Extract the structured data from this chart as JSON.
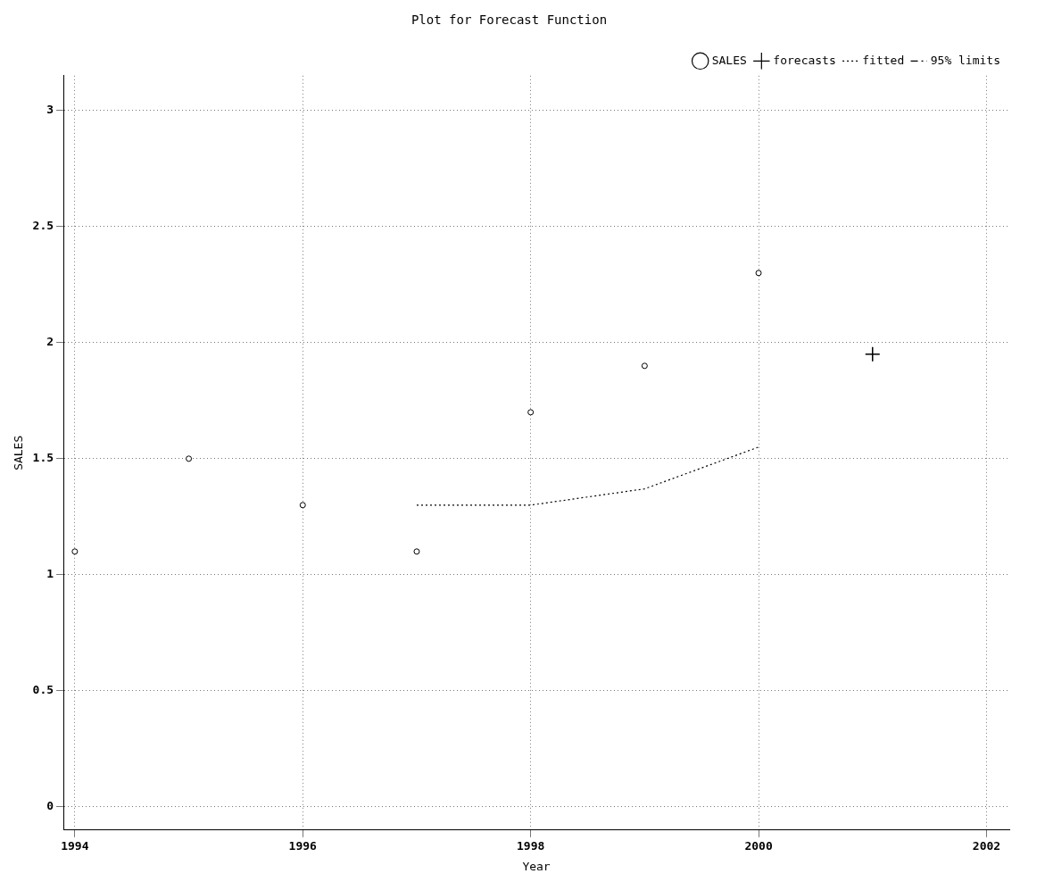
{
  "chart_data": {
    "type": "scatter",
    "title": "Plot for Forecast Function",
    "xlabel": "Year",
    "ylabel": "SALES",
    "xlim": [
      1993.9,
      2002.2
    ],
    "xticks": [
      1994,
      1996,
      1998,
      2000,
      2002
    ],
    "ylim": [
      -0.1,
      3.15
    ],
    "yticks": [
      0,
      0.5,
      1,
      1.5,
      2,
      2.5,
      3
    ],
    "grid": true,
    "legend": "top right",
    "series": [
      {
        "name": "SALES",
        "marker": "circle",
        "color": "#000000",
        "x": [
          1994,
          1995,
          1996,
          1997,
          1998,
          1999,
          2000
        ],
        "values": [
          1.1,
          1.5,
          1.3,
          1.1,
          1.7,
          1.9,
          2.3
        ]
      },
      {
        "name": "forecasts",
        "type": "scatter",
        "marker": "cross",
        "color": "#000000",
        "x": [
          2001
        ],
        "values": [
          1.95
        ]
      },
      {
        "name": "fitted",
        "type": "line",
        "marker": "none",
        "line_style": "dotted",
        "color": "#000000",
        "x": [
          1997,
          1998,
          1999,
          2000
        ],
        "values": [
          1.3,
          1.3,
          1.37,
          1.55
        ]
      },
      {
        "name": "95% limits",
        "type": "line",
        "marker": "none",
        "line_style": "dashed",
        "color": "#000000"
      }
    ]
  }
}
